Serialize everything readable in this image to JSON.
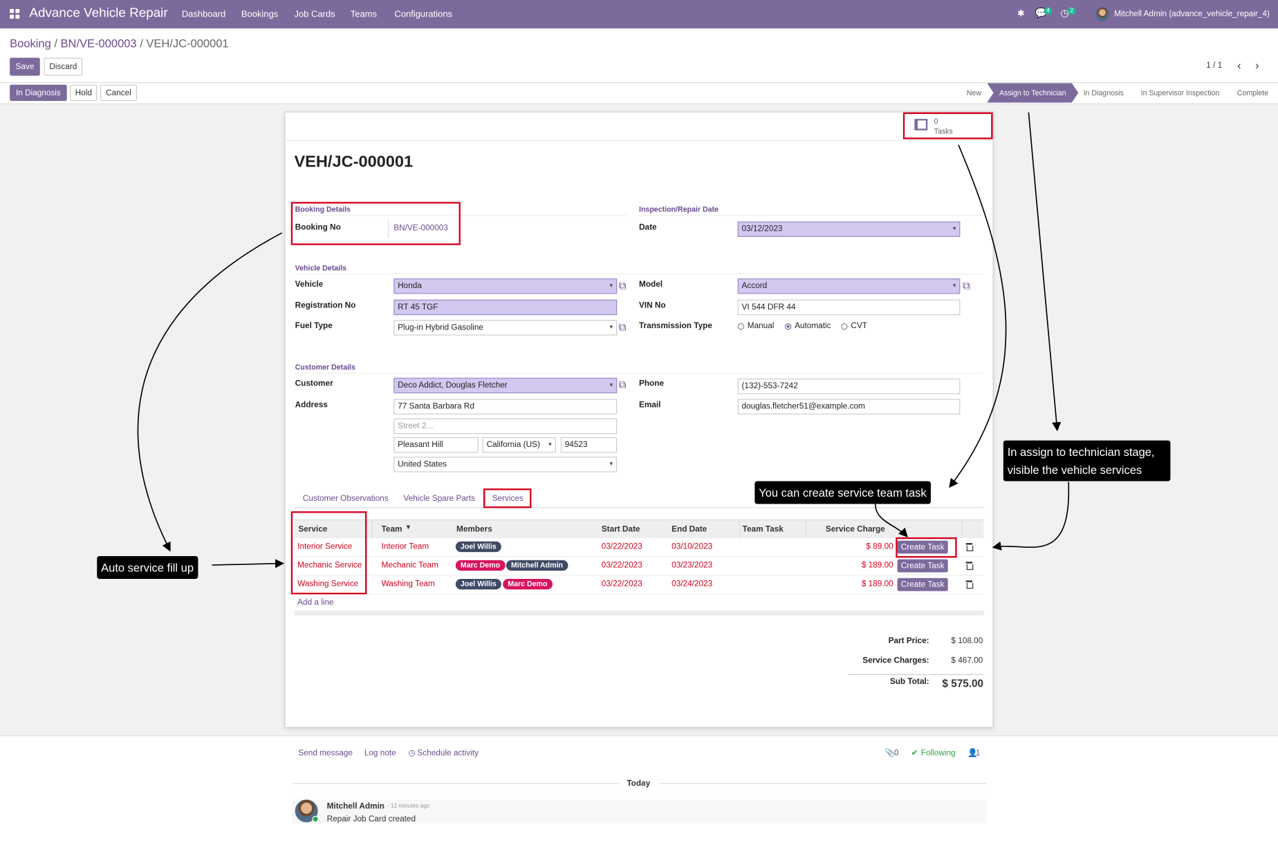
{
  "topbar": {
    "brand": "Advance Vehicle Repair",
    "menu": [
      "Dashboard",
      "Bookings",
      "Job Cards",
      "Teams",
      "Configurations"
    ],
    "msg_count": "4",
    "activity_count": "2",
    "user": "Mitchell Admin (advance_vehicle_repair_4)"
  },
  "breadcrumb": {
    "root": "Booking",
    "parent": "BN/VE-000003",
    "current": "VEH/JC-000001",
    "sep": "/"
  },
  "buttons": {
    "save": "Save",
    "discard": "Discard",
    "in_diagnosis": "In Diagnosis",
    "hold": "Hold",
    "cancel": "Cancel"
  },
  "pager": {
    "value": "1 / 1"
  },
  "stages": [
    "New",
    "Assign to Technician",
    "In Diagnosis",
    "In Supervisor Inspection",
    "Complete"
  ],
  "tasks": {
    "count": "0",
    "label": "Tasks"
  },
  "record": {
    "title": "VEH/JC-000001"
  },
  "booking": {
    "section": "Booking Details",
    "no_label": "Booking No",
    "no_value": "BN/VE-000003"
  },
  "inspection": {
    "section": "Inspection/Repair Date",
    "date_label": "Date",
    "date_value": "03/12/2023"
  },
  "vehicle": {
    "section": "Vehicle Details",
    "vehicle_label": "Vehicle",
    "vehicle_value": "Honda",
    "reg_label": "Registration No",
    "reg_value": "RT 45 TGF",
    "fuel_label": "Fuel Type",
    "fuel_value": "Plug-in Hybrid Gasoline",
    "model_label": "Model",
    "model_value": "Accord",
    "vin_label": "VIN No",
    "vin_value": "VI 544 DFR 44",
    "trans_label": "Transmission Type",
    "trans_options": [
      "Manual",
      "Automatic",
      "CVT"
    ]
  },
  "customer": {
    "section": "Customer Details",
    "customer_label": "Customer",
    "customer_value": "Deco Addict, Douglas Fletcher",
    "address_label": "Address",
    "street": "77 Santa Barbara Rd",
    "street2_placeholder": "Street 2...",
    "city": "Pleasant Hill",
    "state": "California (US)",
    "zip": "94523",
    "country": "United States",
    "phone_label": "Phone",
    "phone_value": "(132)-553-7242",
    "email_label": "Email",
    "email_value": "douglas.fletcher51@example.com"
  },
  "tabs": [
    "Customer Observations",
    "Vehicle Spare Parts",
    "Services"
  ],
  "table": {
    "headers": [
      "Service",
      "Team",
      "Members",
      "Start Date",
      "End Date",
      "Team Task",
      "Service Charge"
    ],
    "rows": [
      {
        "service": "Interior Service",
        "team": "Interior Team",
        "members": [
          "Joel Willis"
        ],
        "start": "03/22/2023",
        "end": "03/10/2023",
        "charge": "$ 89.00",
        "action": "Create Task"
      },
      {
        "service": "Mechanic Service",
        "team": "Mechanic Team",
        "members": [
          "Marc Demo",
          "Mitchell Admin"
        ],
        "start": "03/22/2023",
        "end": "03/23/2023",
        "charge": "$ 189.00",
        "action": "Create Task"
      },
      {
        "service": "Washing Service",
        "team": "Washing Team",
        "members": [
          "Joel Willis",
          "Marc Demo"
        ],
        "start": "03/22/2023",
        "end": "03/24/2023",
        "charge": "$ 189.00",
        "action": "Create Task"
      }
    ],
    "add_line": "Add a line"
  },
  "totals": {
    "part_label": "Part Price:",
    "part_value": "$ 108.00",
    "service_label": "Service Charges:",
    "service_value": "$ 467.00",
    "sub_label": "Sub Total:",
    "sub_value": "$ 575.00"
  },
  "chatter": {
    "send": "Send message",
    "log": "Log note",
    "schedule": "Schedule activity",
    "attach_count": "0",
    "following": "Following",
    "followers": "1",
    "day": "Today",
    "author": "Mitchell Admin",
    "time": "- 12 minutes ago",
    "body": "Repair Job Card created"
  },
  "annotations": {
    "auto": "Auto service fill up",
    "task": "You can create service team task",
    "stage1": "In assign to technician stage,",
    "stage2": "visible the vehicle services"
  },
  "colors": {
    "primary": "#7c6a9c",
    "required_bg": "#d2c8f0",
    "highlight": "#d6001c",
    "tag_dark": "#3f4a64",
    "tag_pink": "#d6145f"
  }
}
